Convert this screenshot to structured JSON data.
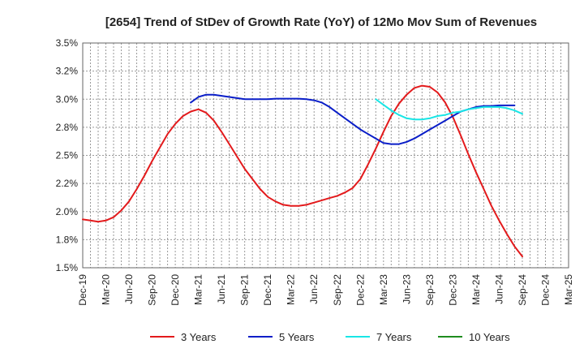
{
  "chart_data": {
    "type": "line",
    "title": "[2654]  Trend of StDev of Growth Rate (YoY) of 12Mo Mov Sum of Revenues",
    "xlabel": "",
    "ylabel": "",
    "ylim": [
      1.5,
      3.5
    ],
    "y_ticks": [
      1.5,
      1.75,
      2.0,
      2.25,
      2.5,
      2.75,
      3.0,
      3.25,
      3.5
    ],
    "y_tick_labels": [
      "1.5%",
      "1.8%",
      "2.0%",
      "2.2%",
      "2.5%",
      "2.8%",
      "3.0%",
      "3.2%",
      "3.5%"
    ],
    "x_tick_labels": [
      "Dec-19",
      "Mar-20",
      "Jun-20",
      "Sep-20",
      "Dec-20",
      "Mar-21",
      "Jun-21",
      "Sep-21",
      "Dec-21",
      "Mar-22",
      "Jun-22",
      "Sep-22",
      "Dec-22",
      "Mar-23",
      "Jun-23",
      "Sep-23",
      "Dec-23",
      "Mar-24",
      "Jun-24",
      "Sep-24",
      "Dec-24",
      "Mar-25"
    ],
    "grid": true,
    "legend_position": "bottom",
    "series": [
      {
        "name": "3 Years",
        "color": "#e31a1c",
        "start_index": 0,
        "values": [
          1.93,
          1.92,
          1.91,
          1.92,
          1.95,
          2.01,
          2.09,
          2.2,
          2.32,
          2.45,
          2.57,
          2.69,
          2.78,
          2.85,
          2.89,
          2.91,
          2.88,
          2.81,
          2.71,
          2.6,
          2.49,
          2.38,
          2.29,
          2.2,
          2.13,
          2.09,
          2.06,
          2.05,
          2.05,
          2.06,
          2.08,
          2.1,
          2.12,
          2.14,
          2.17,
          2.21,
          2.29,
          2.42,
          2.56,
          2.71,
          2.85,
          2.96,
          3.04,
          3.1,
          3.12,
          3.11,
          3.06,
          2.97,
          2.84,
          2.68,
          2.51,
          2.35,
          2.2,
          2.05,
          1.92,
          1.8,
          1.69,
          1.6
        ]
      },
      {
        "name": "5 Years",
        "color": "#0a1ec8",
        "start_index": 14,
        "values": [
          2.97,
          3.02,
          3.04,
          3.04,
          3.03,
          3.02,
          3.01,
          3.0,
          3.0,
          3.0,
          3.0,
          3.005,
          3.005,
          3.005,
          3.005,
          3.0,
          2.99,
          2.97,
          2.93,
          2.88,
          2.83,
          2.78,
          2.73,
          2.69,
          2.65,
          2.61,
          2.6,
          2.6,
          2.62,
          2.65,
          2.69,
          2.73,
          2.77,
          2.81,
          2.85,
          2.89,
          2.91,
          2.93,
          2.94,
          2.94,
          2.945,
          2.945,
          2.945
        ]
      },
      {
        "name": "7 Years",
        "color": "#19e6e6",
        "start_index": 38,
        "values": [
          3.0,
          2.95,
          2.9,
          2.86,
          2.83,
          2.82,
          2.82,
          2.83,
          2.85,
          2.86,
          2.88,
          2.89,
          2.91,
          2.92,
          2.93,
          2.93,
          2.93,
          2.92,
          2.9,
          2.87
        ]
      },
      {
        "name": "10 Years",
        "color": "#1e8c1e",
        "start_index": 0,
        "values": []
      }
    ]
  }
}
